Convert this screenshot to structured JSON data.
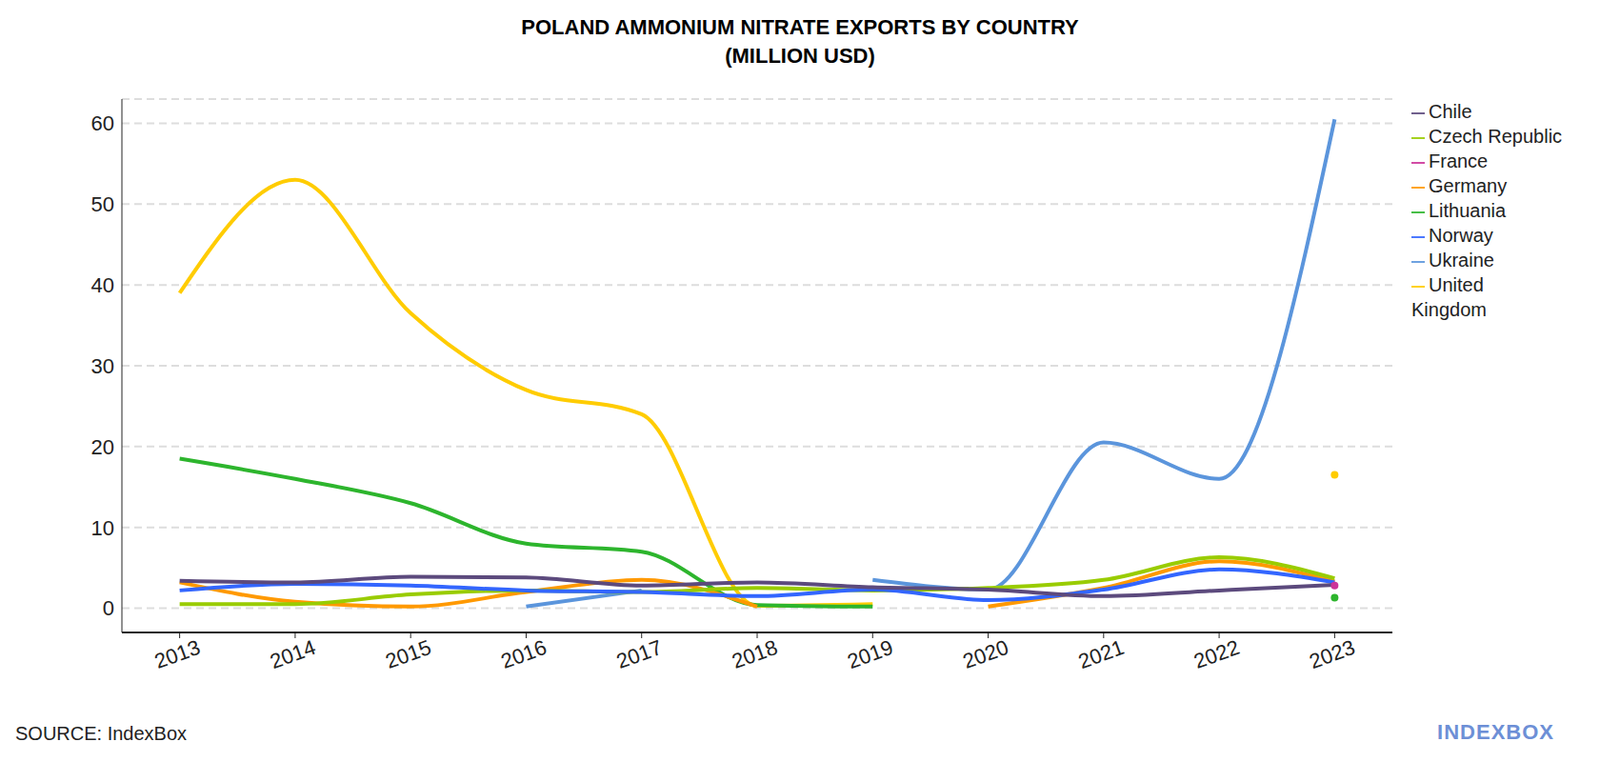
{
  "chart_data": {
    "type": "line",
    "title": "POLAND AMMONIUM NITRATE EXPORTS BY COUNTRY",
    "subtitle": "(MILLION USD)",
    "source": "SOURCE: IndexBox",
    "brand": "INDEXBOX",
    "x": [
      2013,
      2014,
      2015,
      2016,
      2017,
      2018,
      2019,
      2020,
      2021,
      2022,
      2023
    ],
    "xlim": [
      2012.5,
      2023.5
    ],
    "xticks": [
      2013,
      2014,
      2015,
      2016,
      2017,
      2018,
      2019,
      2020,
      2021,
      2022,
      2023
    ],
    "ylim": [
      -3,
      63
    ],
    "yticks": [
      0,
      10,
      20,
      30,
      40,
      50,
      60
    ],
    "grid": true,
    "legend": "right",
    "series": [
      {
        "name": "Ukraine",
        "color": "#5b95dc",
        "values": [
          null,
          null,
          null,
          0.2,
          2.2,
          null,
          3.5,
          2.3,
          20.5,
          16,
          60.5
        ]
      },
      {
        "name": "United Kingdom",
        "color": "#ffcc00",
        "values": [
          39,
          53,
          36.5,
          27,
          24,
          0.3,
          0.5,
          null,
          null,
          null,
          16.5
        ]
      },
      {
        "name": "Lithuania",
        "color": "#2db52d",
        "values": [
          18.5,
          16,
          13,
          8,
          7,
          0.4,
          0.2,
          null,
          null,
          null,
          1.3
        ]
      },
      {
        "name": "Germany",
        "color": "#ff9900",
        "values": [
          3.2,
          0.8,
          0.2,
          2,
          3.5,
          0.2,
          null,
          0.2,
          2.5,
          5.8,
          3.3
        ]
      },
      {
        "name": "Czech Republic",
        "color": "#99cc00",
        "values": [
          0.5,
          0.5,
          1.7,
          2.2,
          2,
          2.5,
          2.2,
          2.5,
          3.5,
          6.3,
          3.7
        ]
      },
      {
        "name": "Norway",
        "color": "#3366ff",
        "values": [
          2.2,
          3,
          2.8,
          2.2,
          2,
          1.5,
          2.3,
          1,
          2.3,
          4.8,
          3.2
        ]
      },
      {
        "name": "Chile",
        "color": "#5c4a7d",
        "values": [
          3.4,
          3.2,
          3.9,
          3.8,
          2.8,
          3.2,
          2.6,
          2.3,
          1.5,
          2.2,
          2.9
        ]
      },
      {
        "name": "France",
        "color": "#cc3399",
        "values": [
          null,
          null,
          null,
          null,
          null,
          null,
          null,
          null,
          null,
          null,
          2.8
        ]
      }
    ]
  }
}
